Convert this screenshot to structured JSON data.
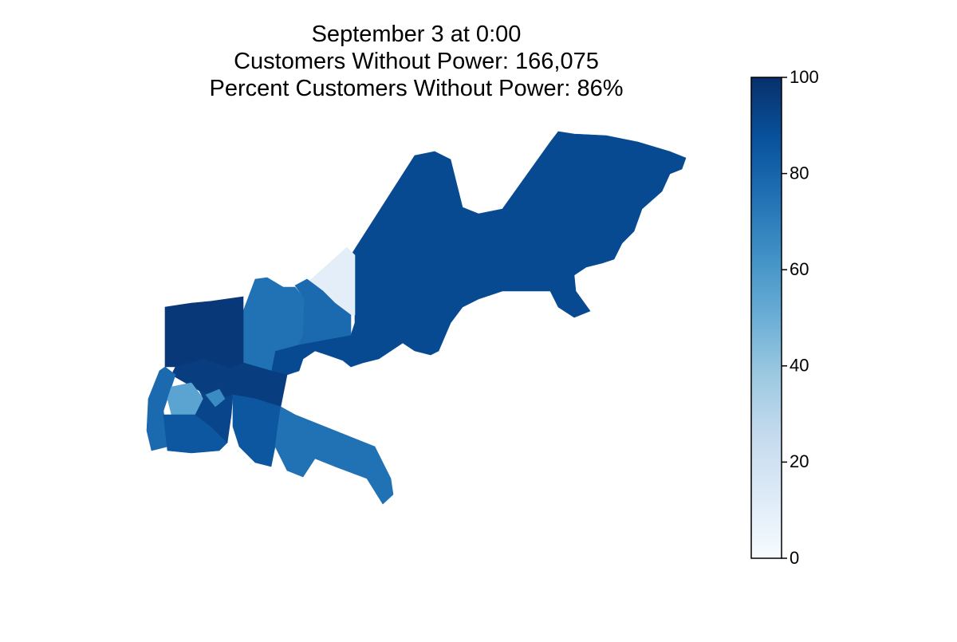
{
  "chart_data": {
    "type": "choropleth",
    "title": [
      "September 3 at 0:00",
      "Customers Without Power: 166,075",
      "Percent Customers Without Power: 86%"
    ],
    "colormap": "Blues",
    "colorbar_lim": [
      0,
      100
    ],
    "colorbar_ticks": [
      0,
      20,
      40,
      60,
      80,
      100
    ],
    "regions": [
      {
        "value": 90
      },
      {
        "value": 10
      },
      {
        "value": 75
      },
      {
        "value": 78
      },
      {
        "value": 97
      },
      {
        "value": 97
      },
      {
        "value": 95
      },
      {
        "value": 95
      },
      {
        "value": 78
      },
      {
        "value": 55
      },
      {
        "value": 85
      },
      {
        "value": 92
      },
      {
        "value": 65
      },
      {
        "value": 85
      },
      {
        "value": 75
      }
    ]
  }
}
